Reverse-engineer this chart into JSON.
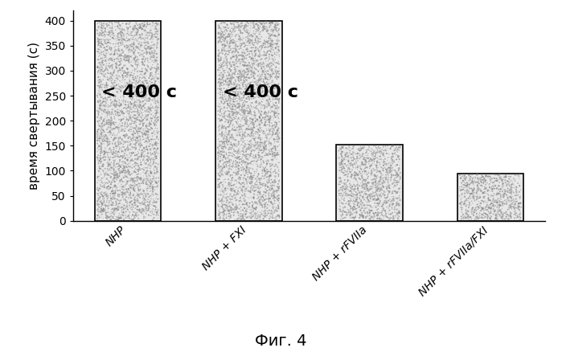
{
  "categories": [
    "NHP",
    "NHP + FXI",
    "NHP + rFVIIa",
    "NHP + rFVIIa/FXI"
  ],
  "values": [
    400,
    400,
    152,
    95
  ],
  "annotations": [
    "〈 400 с",
    "〈 400 с",
    "",
    ""
  ],
  "ylabel": "время свертывания (с)",
  "ylim": [
    0,
    420
  ],
  "yticks": [
    0,
    50,
    100,
    150,
    200,
    250,
    300,
    350,
    400
  ],
  "caption": "Фиг. 4",
  "bar_color": "#e8e8e8",
  "bar_edgecolor": "#000000",
  "annotation_fontsize": 16,
  "ylabel_fontsize": 11,
  "caption_fontsize": 14,
  "xtick_fontsize": 10,
  "ytick_fontsize": 10,
  "bar_width": 0.55,
  "noise_seed": 42
}
